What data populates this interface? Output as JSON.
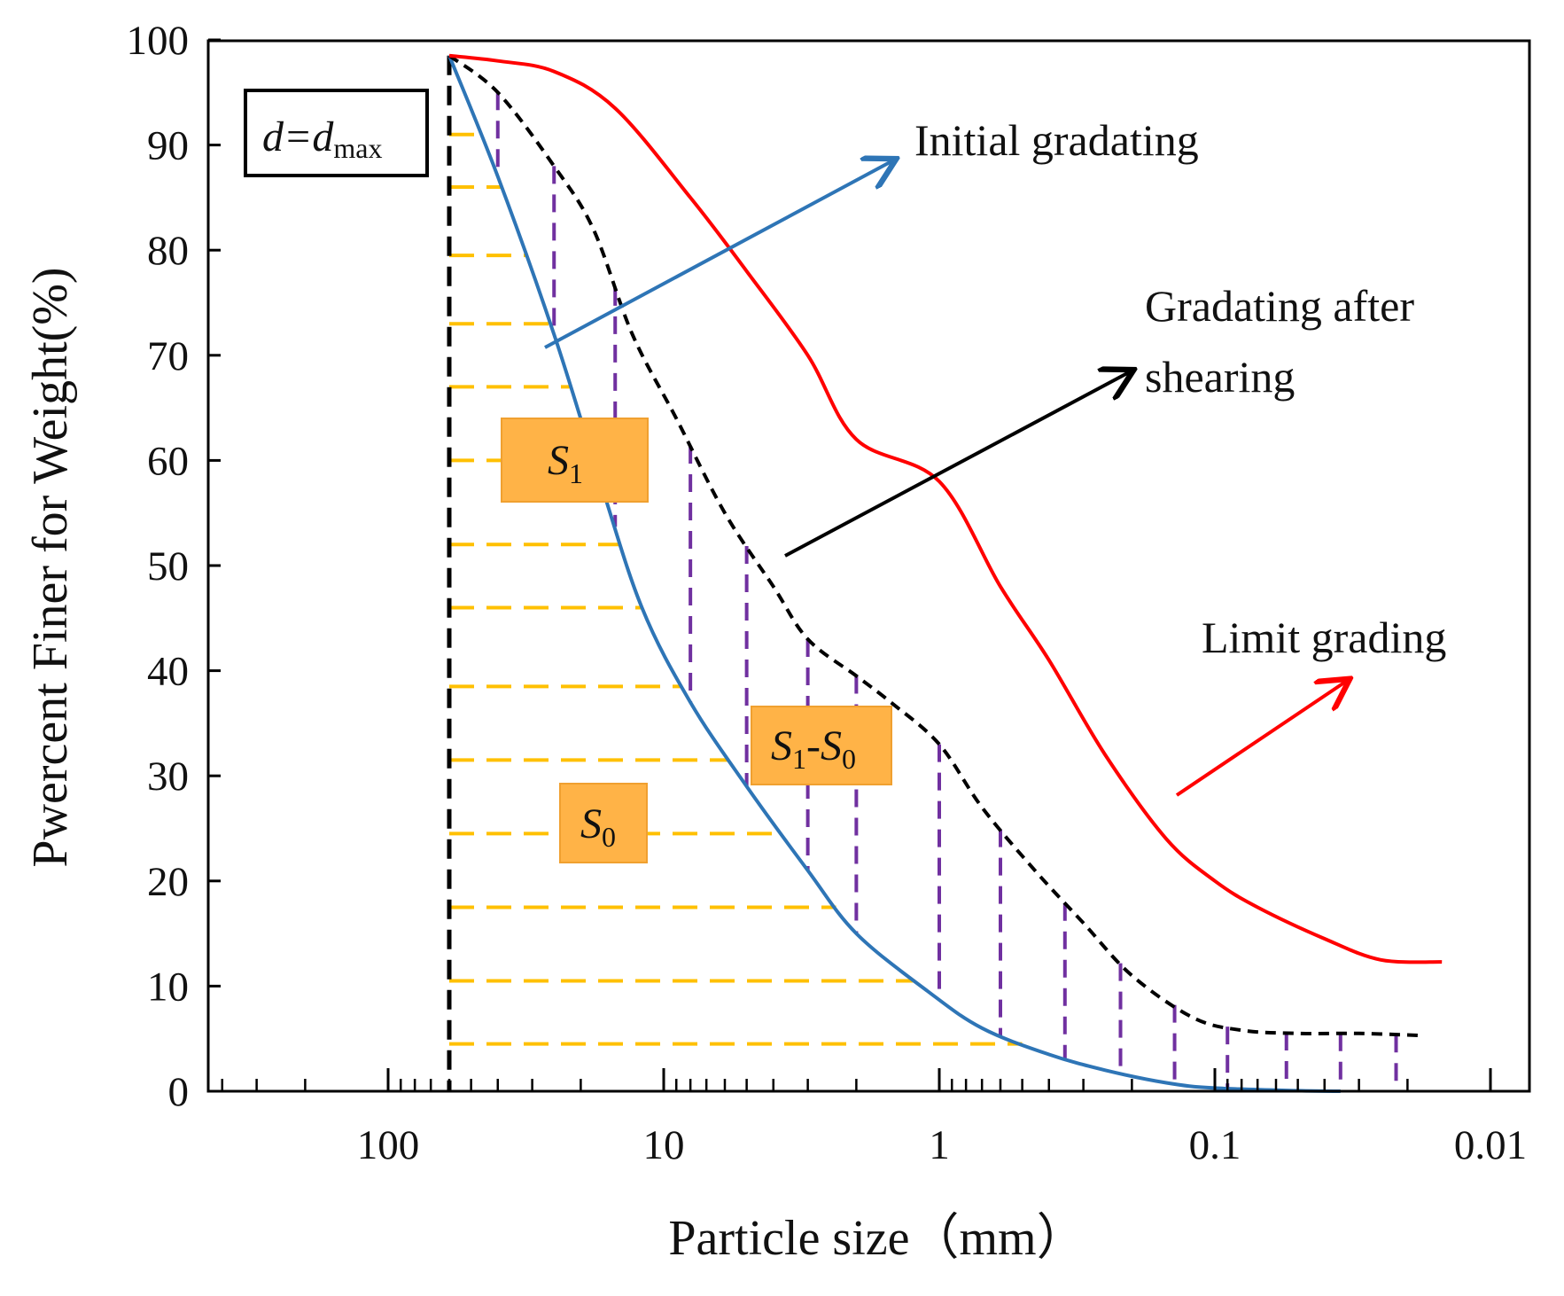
{
  "chart_data": {
    "type": "line",
    "title": "",
    "xlabel": "Particle size（mm）",
    "ylabel": "Pwercent Finer for Weight(%)",
    "x_scale": "log-reversed",
    "xlim": [
      300,
      0.01
    ],
    "ylim": [
      0,
      100
    ],
    "x_tick_labels": [
      "100",
      "10",
      "1",
      "0.1",
      "0.01"
    ],
    "x_tick_values": [
      100,
      10,
      1,
      0.1,
      0.01
    ],
    "y_tick_labels": [
      "0",
      "10",
      "20",
      "30",
      "40",
      "50",
      "60",
      "70",
      "80",
      "90",
      "100"
    ],
    "y_tick_values": [
      0,
      10,
      20,
      30,
      40,
      50,
      60,
      70,
      80,
      90,
      100
    ],
    "dmax": 60,
    "series": [
      {
        "name": "Initial gradating",
        "color": "#2e75b6",
        "style": "solid",
        "x": [
          60,
          40,
          25,
          17,
          12,
          8,
          5,
          3,
          2,
          1.1,
          0.7,
          0.4,
          0.25,
          0.15,
          0.1,
          0.05,
          0.035
        ],
        "y": [
          98.5,
          87,
          72,
          58,
          46,
          37,
          29,
          21,
          15,
          9.5,
          6,
          3.5,
          2,
          0.8,
          0.3,
          0.05,
          0
        ]
      },
      {
        "name": "Gradating after shearing",
        "color": "#000000",
        "style": "dashed",
        "x": [
          60,
          40,
          25,
          18,
          13,
          9,
          6,
          4,
          3,
          2,
          1.5,
          1,
          0.7,
          0.45,
          0.3,
          0.2,
          0.12,
          0.08,
          0.05,
          0.03,
          0.018
        ],
        "y": [
          98.5,
          95,
          88,
          82,
          72,
          64,
          55,
          48,
          43,
          39.5,
          37,
          33,
          27,
          21,
          16,
          11,
          7,
          5.8,
          5.5,
          5.5,
          5.3
        ]
      },
      {
        "name": "Limit grading",
        "color": "#ff0000",
        "style": "solid",
        "x": [
          60,
          40,
          25,
          15,
          8,
          5,
          3,
          2,
          1,
          0.6,
          0.4,
          0.25,
          0.15,
          0.1,
          0.07,
          0.04,
          0.025,
          0.015
        ],
        "y": [
          98.5,
          98,
          97,
          93.5,
          85,
          78,
          70,
          62,
          58,
          48,
          41,
          32,
          24,
          20,
          17.5,
          14.5,
          12.5,
          12.3
        ]
      }
    ],
    "annotations": {
      "dmax_label": "d=d",
      "dmax_sub": "max",
      "initial": "Initial gradating",
      "after_line1": "Gradating after",
      "after_line2": "shearing",
      "limit": "Limit grading",
      "s1_main": "S",
      "s1_sub": "1",
      "s0_main": "S",
      "s0_sub": "0",
      "s10_a": "S",
      "s10_a_sub": "1",
      "s10_dash": "-S",
      "s10_b_sub": "0"
    },
    "colors": {
      "area_s0_hatch": "#ffc000",
      "area_diff_hatch": "#7030a0",
      "label_box_fill": "#ffb347",
      "label_box_stroke": "#f0a030"
    }
  }
}
